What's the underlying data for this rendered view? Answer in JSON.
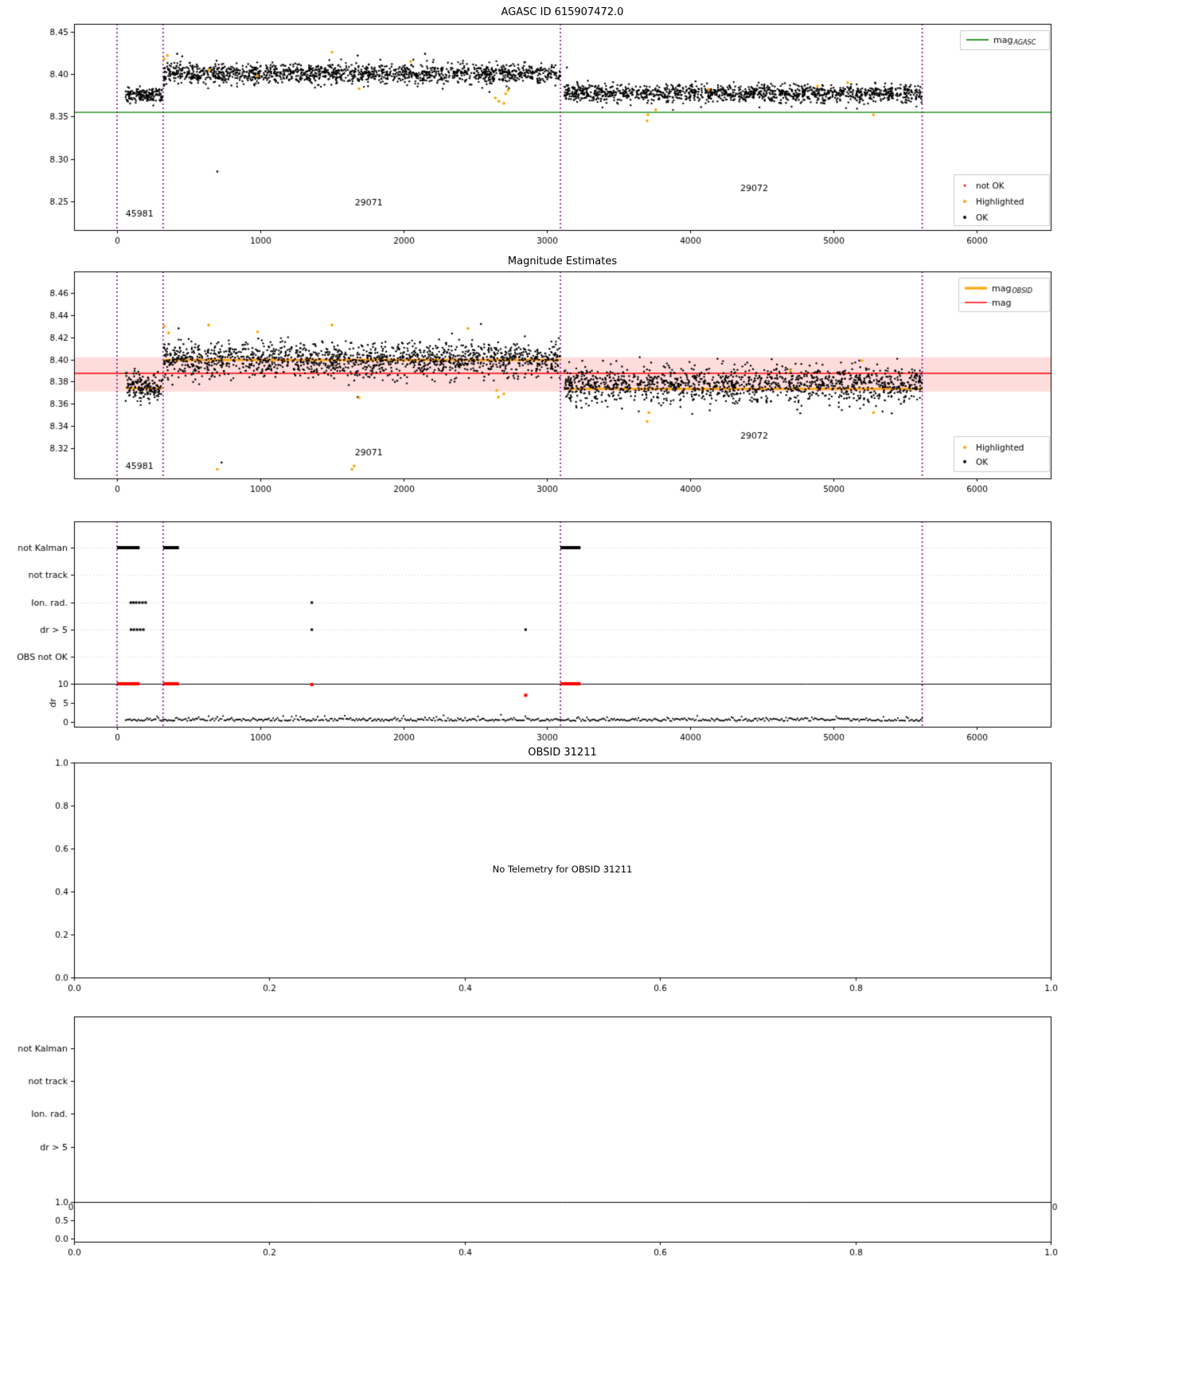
{
  "colors": {
    "black": "#000000",
    "orange": "#ffa500",
    "red": "#ff0000",
    "green": "#008000",
    "purple": "#800080",
    "band": "#ffdcdc",
    "grid": "#bbbbbb"
  },
  "chart_data": [
    {
      "type": "scatter",
      "title": "AGASC ID 615907472.0",
      "xlim": [
        -300,
        6517
      ],
      "ylim": [
        8.216,
        8.4594
      ],
      "xticks": {
        "values": [
          0,
          1000,
          2000,
          3000,
          4000,
          5000,
          6000
        ],
        "labels": [
          "0",
          "1000",
          "2000",
          "3000",
          "4000",
          "5000",
          "6000"
        ]
      },
      "yticks": {
        "values": [
          8.45,
          8.4,
          8.35,
          8.3,
          8.25
        ],
        "labels": [
          "8.45",
          "8.40",
          "8.35",
          "8.30",
          "8.25"
        ]
      },
      "ref_line": {
        "y": 8.355,
        "color": "green",
        "legend_main": "mag",
        "legend_sub": "AGASC"
      },
      "obsid_boundaries": [
        0,
        322,
        3095,
        5620
      ],
      "segments": [
        {
          "x0": 60,
          "x1": 318,
          "n": 170,
          "mean": 8.3755,
          "sd": 0.0042,
          "seed": 11
        },
        {
          "x0": 325,
          "x1": 3095,
          "n": 1480,
          "mean": 8.401,
          "sd": 0.0056,
          "seed": 12
        },
        {
          "x0": 3120,
          "x1": 5620,
          "n": 1320,
          "mean": 8.3775,
          "sd": 0.005,
          "seed": 13
        }
      ],
      "highlighted": [
        [
          330,
          8.418
        ],
        [
          352,
          8.422
        ],
        [
          640,
          8.405
        ],
        [
          980,
          8.398
        ],
        [
          1500,
          8.426
        ],
        [
          1690,
          8.383
        ],
        [
          2050,
          8.415
        ],
        [
          2640,
          8.372
        ],
        [
          2665,
          8.368
        ],
        [
          2700,
          8.3655
        ],
        [
          2712,
          8.377
        ],
        [
          2730,
          8.381
        ],
        [
          3700,
          8.345
        ],
        [
          3706,
          8.352
        ],
        [
          3760,
          8.358
        ],
        [
          4130,
          8.382
        ],
        [
          4890,
          8.386
        ],
        [
          5100,
          8.39
        ],
        [
          5280,
          8.352
        ]
      ],
      "black_outliers": [
        [
          700,
          8.285
        ],
        [
          420,
          8.424
        ],
        [
          455,
          8.421
        ],
        [
          1680,
          8.422
        ],
        [
          2150,
          8.424
        ],
        [
          2600,
          8.379
        ],
        [
          3140,
          8.408
        ]
      ],
      "annotations": [
        {
          "x": 60,
          "y": 8.232,
          "text": "45981"
        },
        {
          "x": 1660,
          "y": 8.245,
          "text": "29071"
        },
        {
          "x": 4350,
          "y": 8.262,
          "text": "29072"
        }
      ],
      "marker_legend": [
        {
          "label": "not OK",
          "color": "red"
        },
        {
          "label": "Highlighted",
          "color": "orange"
        },
        {
          "label": "OK",
          "color": "black"
        }
      ]
    },
    {
      "type": "scatter",
      "title": "Magnitude Estimates",
      "xlim": [
        -300,
        6517
      ],
      "ylim": [
        8.2927,
        8.4794
      ],
      "xticks": {
        "values": [
          0,
          1000,
          2000,
          3000,
          4000,
          5000,
          6000
        ],
        "labels": [
          "0",
          "1000",
          "2000",
          "3000",
          "4000",
          "5000",
          "6000"
        ]
      },
      "yticks": {
        "values": [
          8.46,
          8.44,
          8.42,
          8.4,
          8.38,
          8.36,
          8.34,
          8.32
        ],
        "labels": [
          "8.46",
          "8.44",
          "8.42",
          "8.40",
          "8.38",
          "8.36",
          "8.34",
          "8.32"
        ]
      },
      "mag_line": 8.3875,
      "band": [
        8.371,
        8.402
      ],
      "steps": [
        {
          "x0": 60,
          "x1": 318,
          "y": 8.374
        },
        {
          "x0": 325,
          "x1": 3095,
          "y": 8.3995
        },
        {
          "x0": 3120,
          "x1": 5620,
          "y": 8.3735
        }
      ],
      "obsid_boundaries": [
        0,
        322,
        3095,
        5620
      ],
      "segments": [
        {
          "x0": 60,
          "x1": 318,
          "n": 170,
          "mean": 8.376,
          "sd": 0.006,
          "seed": 21
        },
        {
          "x0": 325,
          "x1": 3095,
          "n": 1480,
          "mean": 8.4,
          "sd": 0.008,
          "seed": 22
        },
        {
          "x0": 3120,
          "x1": 5620,
          "n": 1320,
          "mean": 8.377,
          "sd": 0.008,
          "seed": 23
        }
      ],
      "highlighted": [
        [
          330,
          8.43
        ],
        [
          360,
          8.424
        ],
        [
          640,
          8.431
        ],
        [
          700,
          8.301
        ],
        [
          980,
          8.425
        ],
        [
          1500,
          8.431
        ],
        [
          1640,
          8.301
        ],
        [
          1655,
          8.304
        ],
        [
          1690,
          8.3655
        ],
        [
          2450,
          8.428
        ],
        [
          2650,
          8.372
        ],
        [
          2662,
          8.366
        ],
        [
          2700,
          8.369
        ],
        [
          3700,
          8.344
        ],
        [
          3712,
          8.352
        ],
        [
          4700,
          8.39
        ],
        [
          5200,
          8.399
        ],
        [
          5280,
          8.352
        ]
      ],
      "black_outliers": [
        [
          730,
          8.307
        ],
        [
          1680,
          8.366
        ],
        [
          2540,
          8.432
        ],
        [
          430,
          8.428
        ]
      ],
      "annotations": [
        {
          "x": 60,
          "y": 8.301,
          "text": "45981"
        },
        {
          "x": 1660,
          "y": 8.3135,
          "text": "29071"
        },
        {
          "x": 4350,
          "y": 8.3286,
          "text": "29072"
        }
      ],
      "line_legend": [
        {
          "main": "mag",
          "sub": "OBSID",
          "color": "orange",
          "lw": 3
        },
        {
          "main": "mag",
          "sub": "",
          "color": "red",
          "lw": 1.5
        }
      ],
      "marker_legend": [
        {
          "label": "Highlighted",
          "color": "orange"
        },
        {
          "label": "OK",
          "color": "black"
        }
      ]
    },
    {
      "type": "flags",
      "rows": [
        "not Kalman",
        "not track",
        "Ion. rad.",
        "dr > 5",
        "OBS not OK"
      ],
      "ylabel": "dr",
      "dr_ticks": {
        "values": [
          10,
          5,
          0
        ],
        "labels": [
          "10",
          "5",
          "0"
        ]
      },
      "xlim": [
        -300,
        6517
      ],
      "xticks": {
        "values": [
          0,
          1000,
          2000,
          3000,
          4000,
          5000,
          6000
        ],
        "labels": [
          "0",
          "1000",
          "2000",
          "3000",
          "4000",
          "5000",
          "6000"
        ]
      },
      "obsid_boundaries": [
        0,
        322,
        3095,
        5620
      ],
      "not_kalman_segments": [
        [
          0,
          158
        ],
        [
          322,
          432
        ],
        [
          3095,
          3235
        ]
      ],
      "not_track_x": [],
      "ion_rad_x": [
        96,
        115,
        134,
        156,
        178,
        200,
        1360
      ],
      "dr_gt5_x": [
        98,
        118,
        140,
        162,
        184,
        1360,
        2852
      ],
      "obs_not_ok_x": [],
      "dr_red_segments": [
        [
          0,
          158
        ],
        [
          322,
          432
        ],
        [
          3095,
          3235
        ]
      ],
      "dr_red_points": [
        [
          1360,
          9.8
        ],
        [
          2852,
          7
        ]
      ],
      "dr_trace": {
        "x0": 60,
        "x1": 5620,
        "step": 10,
        "base": 0.25,
        "sd": 0.45,
        "seed": 31
      }
    },
    {
      "type": "empty-note",
      "title": "OBSID 31211",
      "center_text": "No Telemetry for OBSID 31211",
      "xlim": [
        0,
        1
      ],
      "ylim": [
        0,
        1
      ],
      "xticks": {
        "values": [
          0,
          0.2,
          0.4,
          0.6,
          0.8,
          1
        ],
        "labels": [
          "0.0",
          "0.2",
          "0.4",
          "0.6",
          "0.8",
          "1.0"
        ]
      },
      "yticks": {
        "values": [
          1,
          0.8,
          0.6,
          0.4,
          0.2,
          0
        ],
        "labels": [
          "1.0",
          "0.8",
          "0.6",
          "0.4",
          "0.2",
          "0.0"
        ]
      }
    },
    {
      "type": "flags-empty",
      "rows": [
        "not Kalman",
        "not track",
        "Ion. rad.",
        "dr > 5"
      ],
      "dr_ticks": {
        "labels": [
          "1.0",
          "0.5",
          "0.0"
        ]
      },
      "edge_labels": [
        "0",
        "0"
      ],
      "xlim": [
        0,
        1
      ],
      "xticks": {
        "values": [
          0,
          0.2,
          0.4,
          0.6,
          0.8,
          1
        ],
        "labels": [
          "0.0",
          "0.2",
          "0.4",
          "0.6",
          "0.8",
          "1.0"
        ]
      }
    }
  ]
}
